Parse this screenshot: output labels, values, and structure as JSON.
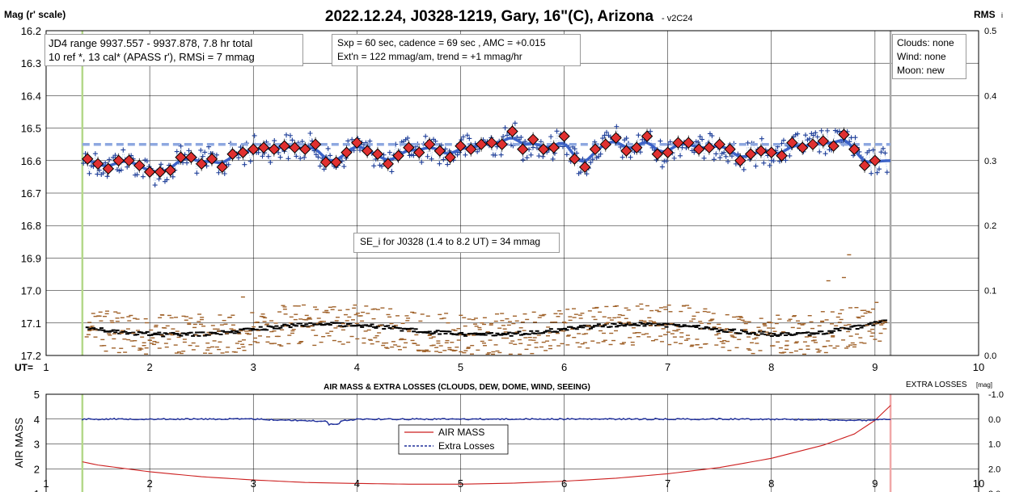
{
  "main_chart": {
    "title": "2022.12.24, J0328-1219, Gary, 16\"(C), Arizona",
    "version": "- v2C24",
    "ylabel": "Mag (r' scale)",
    "y2label": "RMS",
    "y2label_sub": "i",
    "xlabel_prefix": "UT=",
    "ylim": [
      16.2,
      17.2
    ],
    "y2lim": [
      0.0,
      0.5
    ],
    "xlim": [
      1,
      10
    ],
    "yticks": [
      "16.2",
      "16.3",
      "16.4",
      "16.5",
      "16.6",
      "16.7",
      "16.8",
      "16.9",
      "17.0",
      "17.1",
      "17.2"
    ],
    "y2ticks": [
      "0.5",
      "0.4",
      "0.3",
      "0.2",
      "0.1",
      "0.0"
    ],
    "xticks": [
      "1",
      "2",
      "3",
      "4",
      "5",
      "6",
      "7",
      "8",
      "9",
      "10"
    ],
    "box_jd": {
      "line1": "JD4 range 9937.557 - 9937.878, 7.8 hr total",
      "line2": "10 ref *, 13 cal*  (APASS r'), RMSi = 7 mmag"
    },
    "box_sxp": {
      "line1": "Sxp = 60 sec, cadence = 69 sec , AMC = +0.015",
      "line2": "Ext'n = 122 mmag/am, trend = +1 mmag/hr"
    },
    "box_cond": {
      "line1": "Clouds: none",
      "line2": "Wind:  none",
      "line3": "Moon: new"
    },
    "box_se": "SE_i for J0328 (1.4 to 8.2 UT) = 34 mmag",
    "mean_mag": 16.55,
    "start_ut": 1.35,
    "end_ut": 9.15
  },
  "chart_data": [
    {
      "type": "scatter",
      "title": "2022.12.24, J0328-1219, Gary, 16\"(C), Arizona",
      "ylabel": "Mag (r' scale)",
      "xlim": [
        1,
        10
      ],
      "ylim": [
        16.2,
        17.2
      ],
      "series": [
        {
          "name": "",
          "kind": "binned-averages",
          "color": "#e03030",
          "x": [
            1.4,
            1.5,
            1.6,
            1.7,
            1.8,
            1.9,
            2.0,
            2.1,
            2.2,
            2.3,
            2.4,
            2.5,
            2.6,
            2.7,
            2.8,
            2.9,
            3.0,
            3.1,
            3.2,
            3.3,
            3.4,
            3.5,
            3.6,
            3.7,
            3.8,
            3.9,
            4.0,
            4.1,
            4.2,
            4.3,
            4.4,
            4.5,
            4.6,
            4.7,
            4.8,
            4.9,
            5.0,
            5.1,
            5.2,
            5.3,
            5.4,
            5.5,
            5.6,
            5.7,
            5.8,
            5.9,
            6.0,
            6.1,
            6.2,
            6.3,
            6.4,
            6.5,
            6.6,
            6.7,
            6.8,
            6.9,
            7.0,
            7.1,
            7.2,
            7.3,
            7.4,
            7.5,
            7.6,
            7.7,
            7.8,
            7.9,
            8.0,
            8.1,
            8.2,
            8.3,
            8.4,
            8.5,
            8.6,
            8.7,
            8.8,
            8.9,
            9.0
          ],
          "y": [
            16.595,
            16.61,
            16.625,
            16.6,
            16.6,
            16.615,
            16.635,
            16.635,
            16.63,
            16.59,
            16.59,
            16.61,
            16.595,
            16.62,
            16.58,
            16.575,
            16.565,
            16.56,
            16.565,
            16.555,
            16.56,
            16.565,
            16.55,
            16.605,
            16.605,
            16.575,
            16.545,
            16.57,
            16.58,
            16.61,
            16.585,
            16.56,
            16.575,
            16.55,
            16.57,
            16.59,
            16.555,
            16.565,
            16.55,
            16.545,
            16.55,
            16.51,
            16.565,
            16.535,
            16.565,
            16.56,
            16.525,
            16.595,
            16.62,
            16.565,
            16.55,
            16.53,
            16.57,
            16.56,
            16.525,
            16.58,
            16.575,
            16.545,
            16.545,
            16.565,
            16.56,
            16.55,
            16.565,
            16.6,
            16.58,
            16.57,
            16.575,
            16.585,
            16.545,
            16.56,
            16.55,
            16.54,
            16.555,
            16.52,
            16.565,
            16.615,
            16.6
          ]
        }
      ]
    },
    {
      "type": "line",
      "title": "AIR MASS & EXTRA LOSSES (CLOUDS, DEW, DOME, WIND, SEEING)",
      "ylabel": "AIR MASS",
      "y2label": "EXTRA LOSSES",
      "y2unit": "[mag]",
      "xlim": [
        1,
        10
      ],
      "ylim": [
        1,
        5
      ],
      "y2lim": [
        3.0,
        -1.0
      ],
      "yticks": [
        "5",
        "4",
        "3",
        "2",
        "1"
      ],
      "y2ticks": [
        "-1.0",
        "0.0",
        "1.0",
        "2.0",
        "3.0"
      ],
      "xticks": [
        "1",
        "2",
        "3",
        "4",
        "5",
        "6",
        "7",
        "8",
        "9",
        "10"
      ],
      "series": [
        {
          "name": "AIR MASS",
          "color": "#cc1f1f",
          "x": [
            1.35,
            1.5,
            2.0,
            2.5,
            3.0,
            3.5,
            4.0,
            4.5,
            5.0,
            5.5,
            6.0,
            6.5,
            7.0,
            7.5,
            8.0,
            8.5,
            8.8,
            9.0,
            9.15
          ],
          "y": [
            2.28,
            2.15,
            1.88,
            1.68,
            1.55,
            1.45,
            1.41,
            1.38,
            1.38,
            1.42,
            1.5,
            1.62,
            1.8,
            2.05,
            2.42,
            2.95,
            3.4,
            3.95,
            4.55
          ]
        },
        {
          "name": "Extra Losses",
          "color": "#1f2f99",
          "x": [
            1.35,
            2.0,
            3.0,
            3.8,
            4.0,
            5.0,
            6.0,
            7.0,
            8.0,
            8.9,
            9.15
          ],
          "y": [
            0.0,
            0.0,
            0.0,
            0.1,
            0.0,
            0.0,
            0.0,
            0.0,
            0.0,
            0.05,
            0.0
          ]
        }
      ]
    }
  ]
}
